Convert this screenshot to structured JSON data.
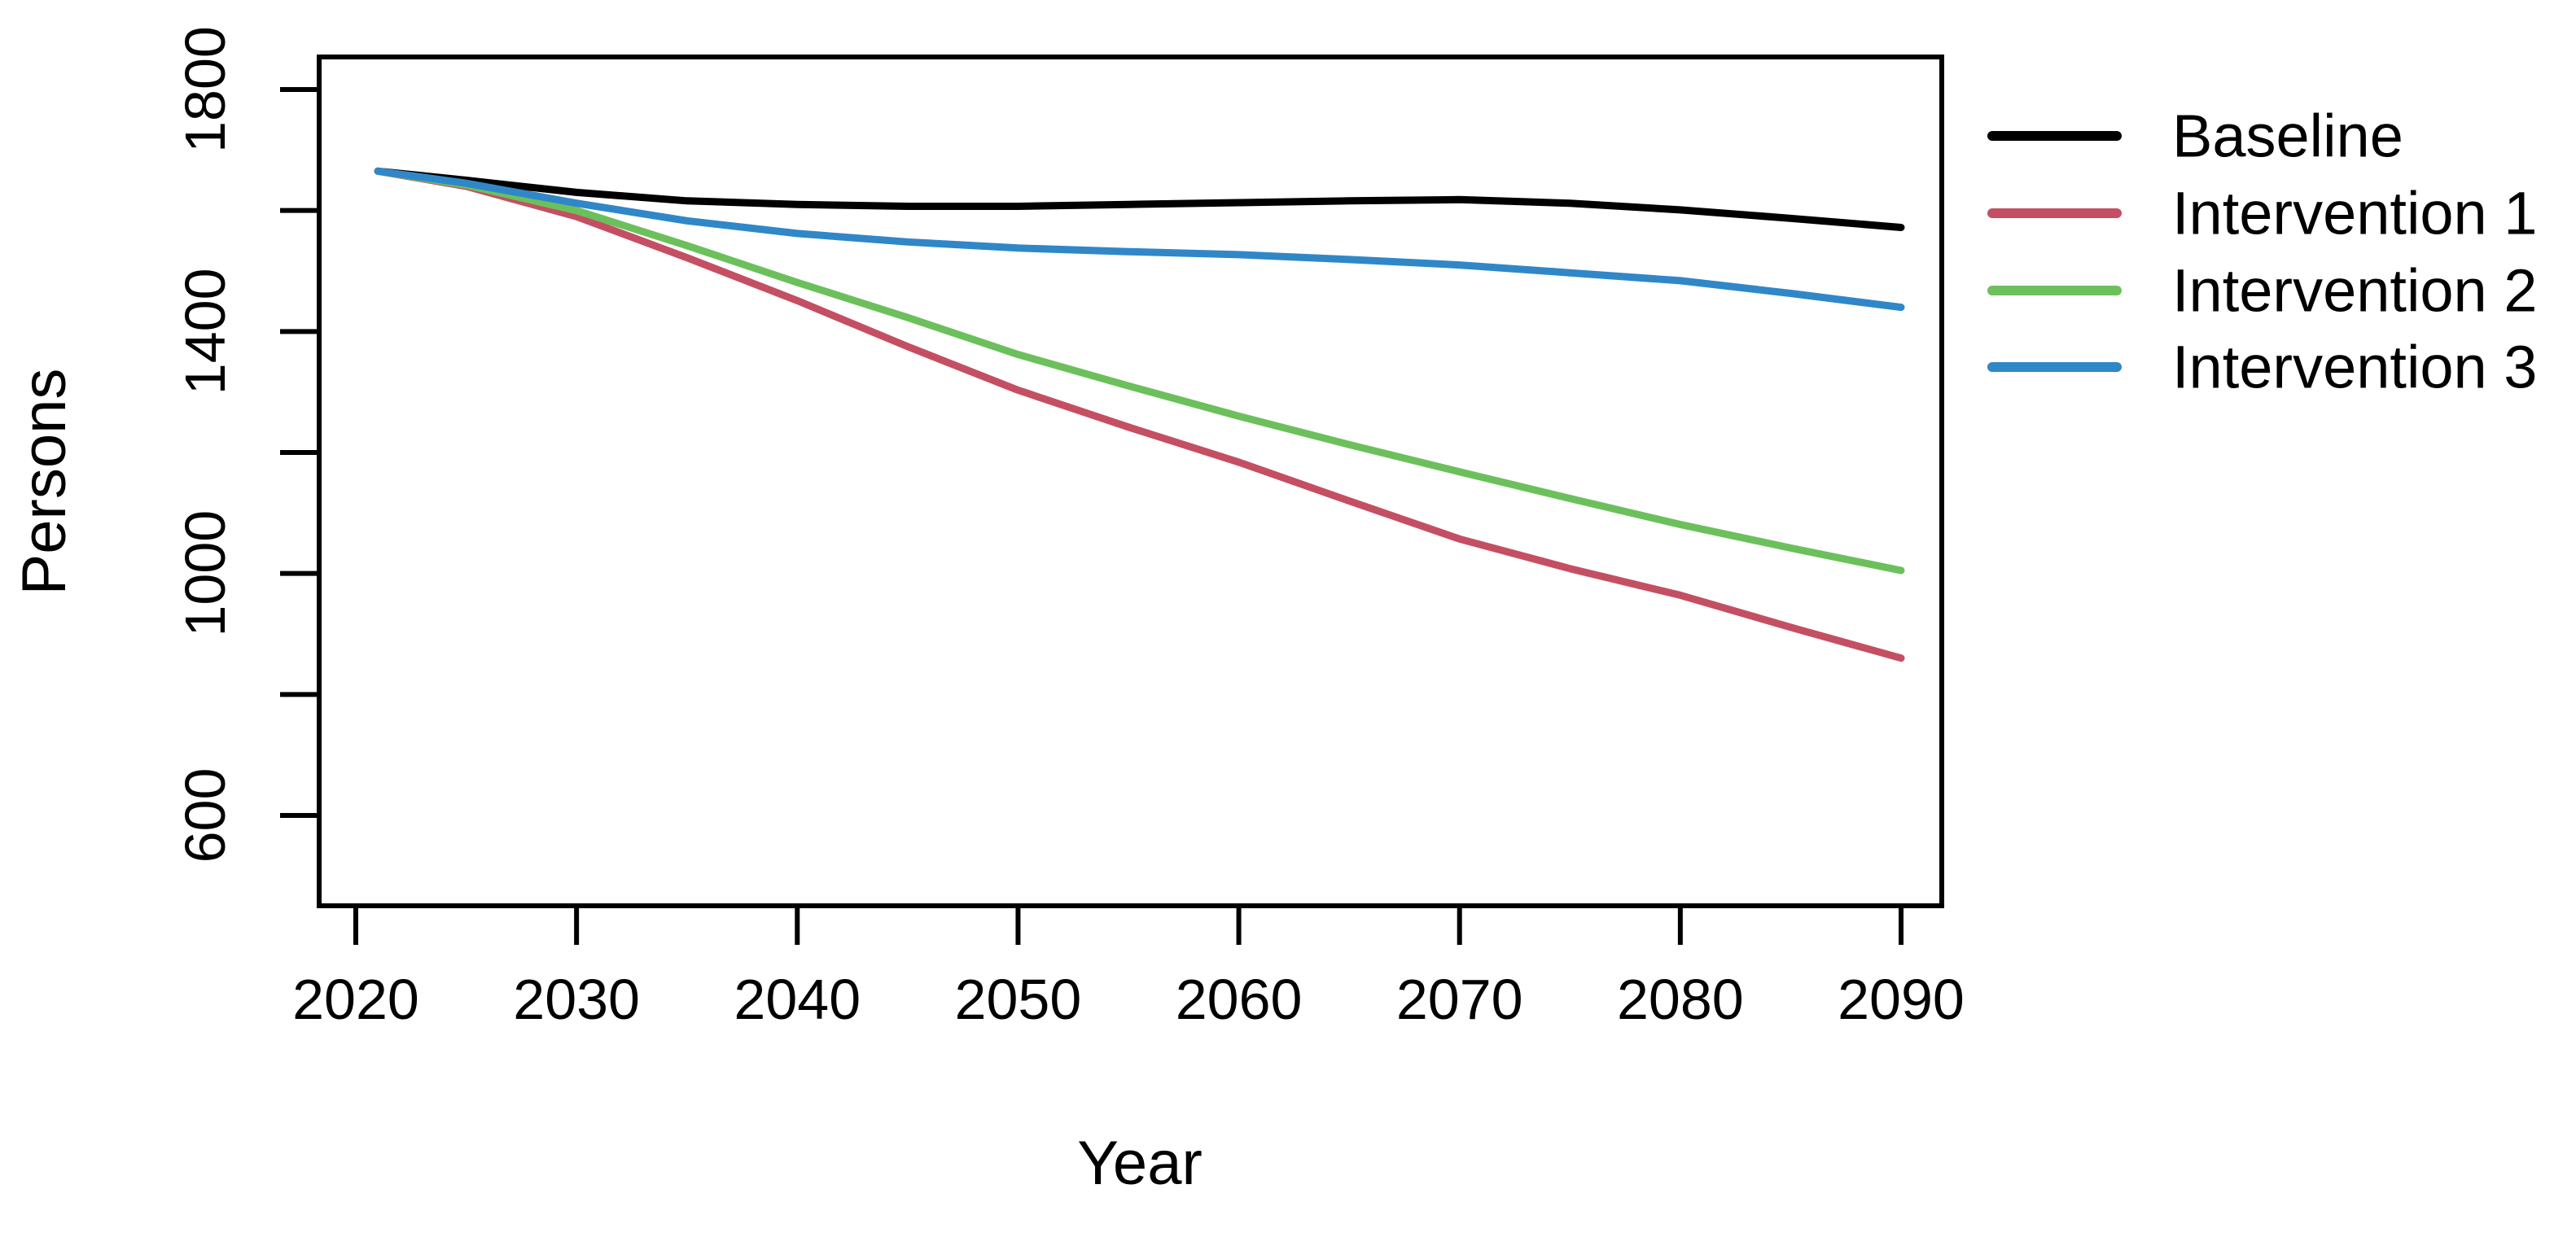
{
  "figure": {
    "background": "#ffffff",
    "plot_border_color": "#000000"
  },
  "chart_data": {
    "type": "line",
    "title": "",
    "xlabel": "Year",
    "ylabel": "Persons",
    "grid": false,
    "x_axis": {
      "min": 2020,
      "max": 2090,
      "tick_values": [
        2020,
        2030,
        2040,
        2050,
        2060,
        2070,
        2080,
        2090
      ],
      "tick_labels": [
        "2020",
        "2030",
        "2040",
        "2050",
        "2060",
        "2070",
        "2080",
        "2090"
      ]
    },
    "y_axis": {
      "min": 600,
      "max": 1800,
      "tick_values": [
        1800,
        1600,
        1400,
        1200,
        1000,
        800,
        600
      ],
      "labeled_tick_values": [
        1800,
        1400,
        1000,
        600
      ],
      "labeled_tick_labels": [
        "1800",
        "1400",
        "1000",
        "600"
      ]
    },
    "x": [
      2021,
      2025,
      2030,
      2035,
      2040,
      2045,
      2050,
      2055,
      2060,
      2065,
      2070,
      2075,
      2080,
      2085,
      2090
    ],
    "series": [
      {
        "name": "Baseline",
        "color": "#000000",
        "values": [
          1665,
          1650,
          1630,
          1616,
          1610,
          1607,
          1607,
          1610,
          1613,
          1616,
          1618,
          1612,
          1601,
          1587,
          1572
        ]
      },
      {
        "name": "Intervention 1",
        "color": "#c44f63",
        "values": [
          1665,
          1640,
          1590,
          1522,
          1451,
          1375,
          1303,
          1242,
          1184,
          1120,
          1057,
          1008,
          964,
          911,
          860
        ]
      },
      {
        "name": "Intervention 2",
        "color": "#6cc05c",
        "values": [
          1665,
          1642,
          1600,
          1542,
          1481,
          1423,
          1362,
          1310,
          1260,
          1213,
          1168,
          1124,
          1081,
          1042,
          1005
        ]
      },
      {
        "name": "Intervention 3",
        "color": "#3087c8",
        "values": [
          1665,
          1645,
          1612,
          1583,
          1562,
          1548,
          1538,
          1532,
          1527,
          1519,
          1510,
          1497,
          1484,
          1463,
          1440
        ]
      }
    ],
    "legend": {
      "position": "top-right",
      "entries": [
        "Baseline",
        "Intervention 1",
        "Intervention 2",
        "Intervention 3"
      ]
    }
  }
}
